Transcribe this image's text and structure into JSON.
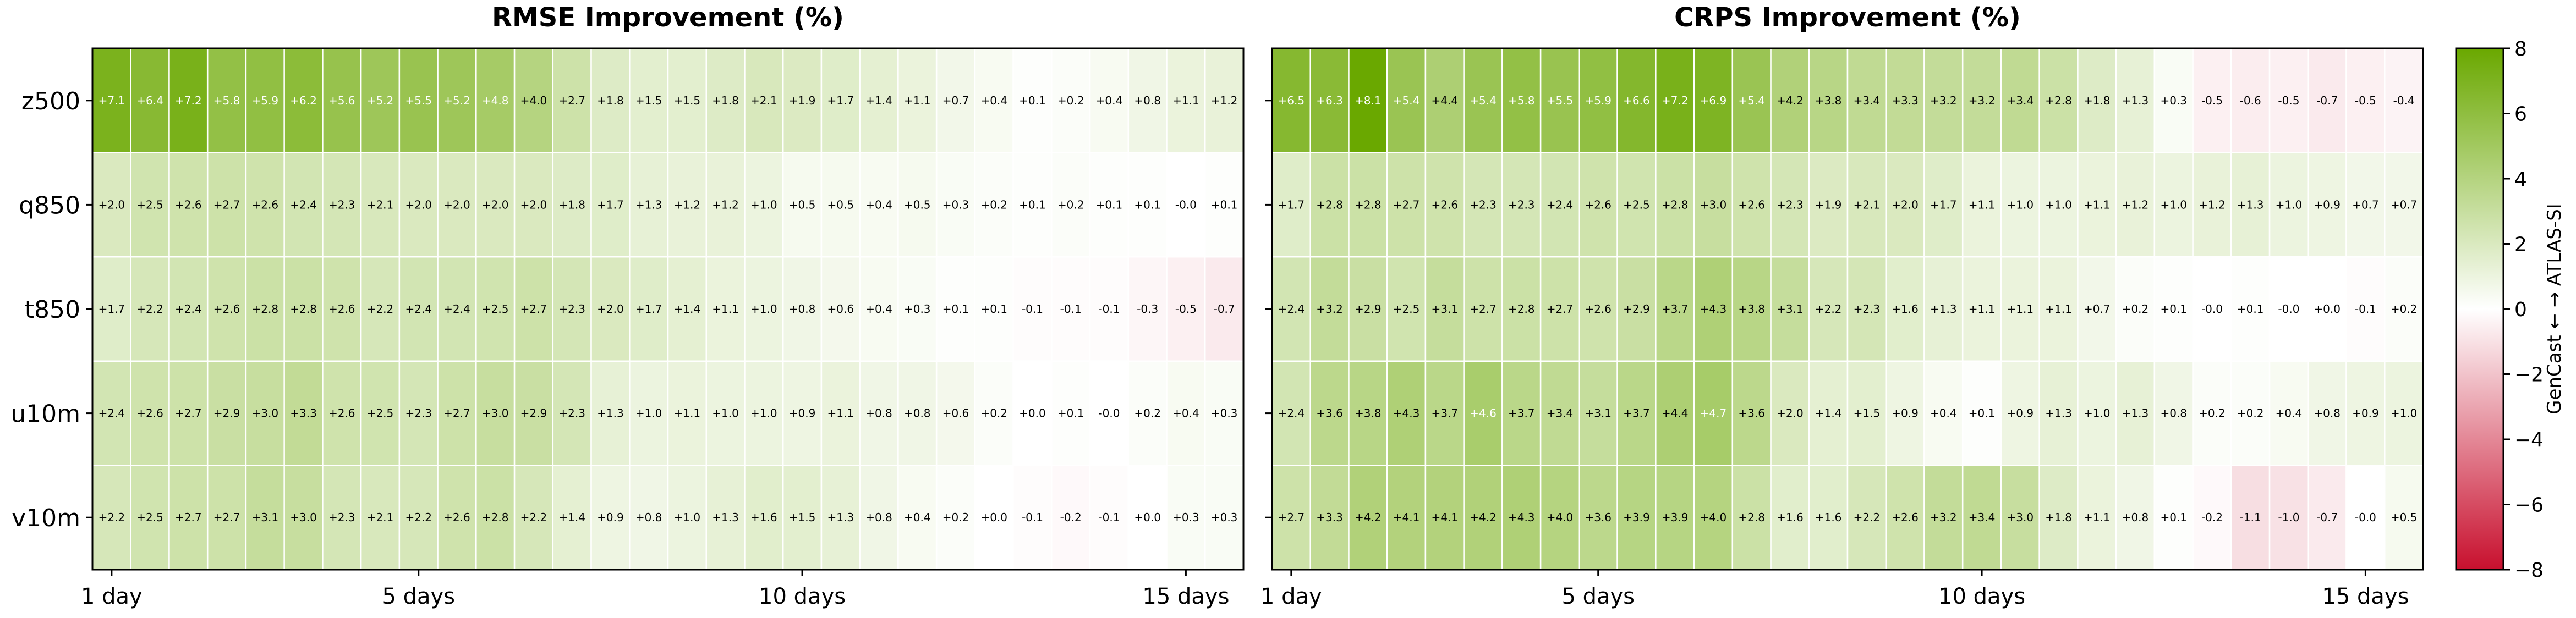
{
  "chart_data": [
    {
      "type": "heatmap",
      "title": "RMSE Improvement (%)",
      "rows": [
        "z500",
        "q850",
        "t850",
        "u10m",
        "v10m"
      ],
      "x_ticks": [
        {
          "step": 0,
          "label": "1 day"
        },
        {
          "step": 8,
          "label": "5 days"
        },
        {
          "step": 18,
          "label": "10 days"
        },
        {
          "step": 28,
          "label": "15 days"
        }
      ],
      "value_labels": [
        [
          "+7.1",
          "+6.4",
          "+7.2",
          "+5.8",
          "+5.9",
          "+6.2",
          "+5.6",
          "+5.2",
          "+5.5",
          "+5.2",
          "+4.8",
          "+4.0",
          "+2.7",
          "+1.8",
          "+1.5",
          "+1.5",
          "+1.8",
          "+2.1",
          "+1.9",
          "+1.7",
          "+1.4",
          "+1.1",
          "+0.7",
          "+0.4",
          "+0.1",
          "+0.2",
          "+0.4",
          "+0.8",
          "+1.1",
          "+1.2"
        ],
        [
          "+2.0",
          "+2.5",
          "+2.6",
          "+2.7",
          "+2.6",
          "+2.4",
          "+2.3",
          "+2.1",
          "+2.0",
          "+2.0",
          "+2.0",
          "+2.0",
          "+1.8",
          "+1.7",
          "+1.3",
          "+1.2",
          "+1.2",
          "+1.0",
          "+0.5",
          "+0.5",
          "+0.4",
          "+0.5",
          "+0.3",
          "+0.2",
          "+0.1",
          "+0.2",
          "+0.1",
          "+0.1",
          "-0.0",
          "+0.1"
        ],
        [
          "+1.7",
          "+2.2",
          "+2.4",
          "+2.6",
          "+2.8",
          "+2.8",
          "+2.6",
          "+2.2",
          "+2.4",
          "+2.4",
          "+2.5",
          "+2.7",
          "+2.3",
          "+2.0",
          "+1.7",
          "+1.4",
          "+1.1",
          "+1.0",
          "+0.8",
          "+0.6",
          "+0.4",
          "+0.3",
          "+0.1",
          "+0.1",
          "-0.1",
          "-0.1",
          "-0.1",
          "-0.3",
          "-0.5",
          "-0.7"
        ],
        [
          "+2.4",
          "+2.6",
          "+2.7",
          "+2.9",
          "+3.0",
          "+3.3",
          "+2.6",
          "+2.5",
          "+2.3",
          "+2.7",
          "+3.0",
          "+2.9",
          "+2.3",
          "+1.3",
          "+1.0",
          "+1.1",
          "+1.0",
          "+1.0",
          "+0.9",
          "+1.1",
          "+0.8",
          "+0.8",
          "+0.6",
          "+0.2",
          "+0.0",
          "+0.1",
          "-0.0",
          "+0.2",
          "+0.4",
          "+0.3"
        ],
        [
          "+2.2",
          "+2.5",
          "+2.7",
          "+2.7",
          "+3.1",
          "+3.0",
          "+2.3",
          "+2.1",
          "+2.2",
          "+2.6",
          "+2.8",
          "+2.2",
          "+1.4",
          "+0.9",
          "+0.8",
          "+1.0",
          "+1.3",
          "+1.6",
          "+1.5",
          "+1.3",
          "+0.8",
          "+0.4",
          "+0.2",
          "+0.0",
          "-0.1",
          "-0.2",
          "-0.1",
          "+0.0",
          "+0.3",
          "+0.3"
        ]
      ]
    },
    {
      "type": "heatmap",
      "title": "CRPS Improvement (%)",
      "rows": [
        "z500",
        "q850",
        "t850",
        "u10m",
        "v10m"
      ],
      "x_ticks": [
        {
          "step": 0,
          "label": "1 day"
        },
        {
          "step": 8,
          "label": "5 days"
        },
        {
          "step": 18,
          "label": "10 days"
        },
        {
          "step": 28,
          "label": "15 days"
        }
      ],
      "value_labels": [
        [
          "+6.5",
          "+6.3",
          "+8.1",
          "+5.4",
          "+4.4",
          "+5.4",
          "+5.8",
          "+5.5",
          "+5.9",
          "+6.6",
          "+7.2",
          "+6.9",
          "+5.4",
          "+4.2",
          "+3.8",
          "+3.4",
          "+3.3",
          "+3.2",
          "+3.2",
          "+3.4",
          "+2.8",
          "+1.8",
          "+1.3",
          "+0.3",
          "-0.5",
          "-0.6",
          "-0.5",
          "-0.7",
          "-0.5",
          "-0.4"
        ],
        [
          "+1.7",
          "+2.8",
          "+2.8",
          "+2.7",
          "+2.6",
          "+2.3",
          "+2.3",
          "+2.4",
          "+2.6",
          "+2.5",
          "+2.8",
          "+3.0",
          "+2.6",
          "+2.3",
          "+1.9",
          "+2.1",
          "+2.0",
          "+1.7",
          "+1.1",
          "+1.0",
          "+1.0",
          "+1.1",
          "+1.2",
          "+1.0",
          "+1.2",
          "+1.3",
          "+1.0",
          "+0.9",
          "+0.7",
          "+0.7"
        ],
        [
          "+2.4",
          "+3.2",
          "+2.9",
          "+2.5",
          "+3.1",
          "+2.7",
          "+2.8",
          "+2.7",
          "+2.6",
          "+2.9",
          "+3.7",
          "+4.3",
          "+3.8",
          "+3.1",
          "+2.2",
          "+2.3",
          "+1.6",
          "+1.3",
          "+1.1",
          "+1.1",
          "+1.1",
          "+0.7",
          "+0.2",
          "+0.1",
          "-0.0",
          "+0.1",
          "-0.0",
          "+0.0",
          "-0.1",
          "+0.2"
        ],
        [
          "+2.4",
          "+3.6",
          "+3.8",
          "+4.3",
          "+3.7",
          "+4.6",
          "+3.7",
          "+3.4",
          "+3.1",
          "+3.7",
          "+4.4",
          "+4.7",
          "+3.6",
          "+2.0",
          "+1.4",
          "+1.5",
          "+0.9",
          "+0.4",
          "+0.1",
          "+0.9",
          "+1.3",
          "+1.0",
          "+1.3",
          "+0.8",
          "+0.2",
          "+0.2",
          "+0.4",
          "+0.8",
          "+0.9",
          "+1.0"
        ],
        [
          "+2.7",
          "+3.3",
          "+4.2",
          "+4.1",
          "+4.1",
          "+4.2",
          "+4.3",
          "+4.0",
          "+3.6",
          "+3.9",
          "+3.9",
          "+4.0",
          "+2.8",
          "+1.6",
          "+1.6",
          "+2.2",
          "+2.6",
          "+3.2",
          "+3.4",
          "+3.0",
          "+1.8",
          "+1.1",
          "+0.8",
          "+0.1",
          "-0.2",
          "-1.1",
          "-1.0",
          "-0.7",
          "-0.0",
          "+0.5"
        ]
      ]
    }
  ],
  "colorbar": {
    "label": "GenCast ← → ATLAS-SI",
    "range": [
      -8,
      8
    ],
    "tick_values": [
      8,
      6,
      4,
      2,
      0,
      -2,
      -4,
      -6,
      -8
    ],
    "tick_labels": [
      "8",
      "6",
      "4",
      "2",
      "0",
      "−2",
      "−4",
      "−6",
      "−8"
    ],
    "colors": {
      "negative": "#c8102e",
      "zero": "#ffffff",
      "positive": "#6aa800"
    }
  }
}
